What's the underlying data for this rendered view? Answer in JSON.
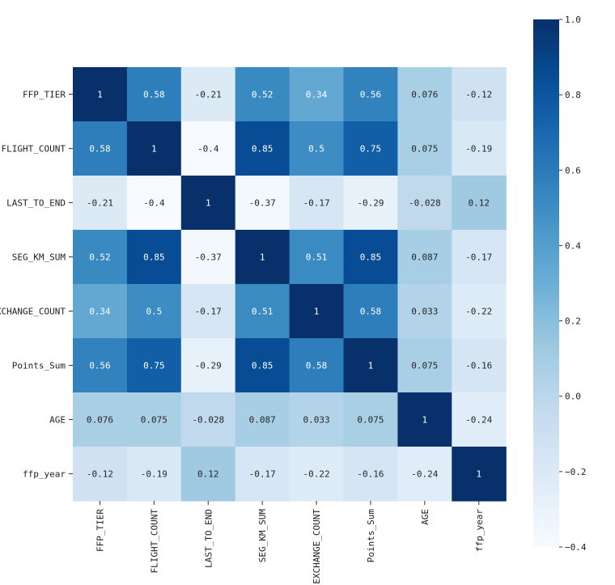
{
  "chart_data": {
    "type": "heatmap",
    "title": "",
    "xlabel": "",
    "ylabel": "",
    "labels": [
      "FFP_TIER",
      "FLIGHT_COUNT",
      "LAST_TO_END",
      "SEG_KM_SUM",
      "EXCHANGE_COUNT",
      "Points_Sum",
      "AGE",
      "ffp_year"
    ],
    "matrix": [
      [
        1,
        0.58,
        -0.21,
        0.52,
        0.34,
        0.56,
        0.076,
        -0.12
      ],
      [
        0.58,
        1,
        -0.4,
        0.85,
        0.5,
        0.75,
        0.075,
        -0.19
      ],
      [
        -0.21,
        -0.4,
        1,
        -0.37,
        -0.17,
        -0.29,
        -0.028,
        0.12
      ],
      [
        0.52,
        0.85,
        -0.37,
        1,
        0.51,
        0.85,
        0.087,
        -0.17
      ],
      [
        0.34,
        0.5,
        -0.17,
        0.51,
        1,
        0.58,
        0.033,
        -0.22
      ],
      [
        0.56,
        0.75,
        -0.29,
        0.85,
        0.58,
        1,
        0.075,
        -0.16
      ],
      [
        0.076,
        0.075,
        -0.028,
        0.087,
        0.033,
        0.075,
        1,
        -0.24
      ],
      [
        -0.12,
        -0.19,
        0.12,
        -0.17,
        -0.22,
        -0.16,
        -0.24,
        1
      ]
    ],
    "cell_labels": [
      [
        "1",
        "0.58",
        "-0.21",
        "0.52",
        "0.34",
        "0.56",
        "0.076",
        "-0.12"
      ],
      [
        "0.58",
        "1",
        "-0.4",
        "0.85",
        "0.5",
        "0.75",
        "0.075",
        "-0.19"
      ],
      [
        "-0.21",
        "-0.4",
        "1",
        "-0.37",
        "-0.17",
        "-0.29",
        "-0.028",
        "0.12"
      ],
      [
        "0.52",
        "0.85",
        "-0.37",
        "1",
        "0.51",
        "0.85",
        "0.087",
        "-0.17"
      ],
      [
        "0.34",
        "0.5",
        "-0.17",
        "0.51",
        "1",
        "0.58",
        "0.033",
        "-0.22"
      ],
      [
        "0.56",
        "0.75",
        "-0.29",
        "0.85",
        "0.58",
        "1",
        "0.075",
        "-0.16"
      ],
      [
        "0.076",
        "0.075",
        "-0.028",
        "0.087",
        "0.033",
        "0.075",
        "1",
        "-0.24"
      ],
      [
        "-0.12",
        "-0.19",
        "0.12",
        "-0.17",
        "-0.22",
        "-0.16",
        "-0.24",
        "1"
      ]
    ],
    "colormap": "Blues",
    "colormap_stops": [
      "#f7fbff",
      "#deebf7",
      "#c6dbef",
      "#9ecae1",
      "#6baed6",
      "#4292c6",
      "#2171b5",
      "#08519c",
      "#08306b"
    ],
    "vmin": -0.4,
    "vmax": 1.0,
    "colorbar_ticks": [
      {
        "value": 1.0,
        "label": "1.0"
      },
      {
        "value": 0.8,
        "label": "0.8"
      },
      {
        "value": 0.6,
        "label": "0.6"
      },
      {
        "value": 0.4,
        "label": "0.4"
      },
      {
        "value": 0.2,
        "label": "0.2"
      },
      {
        "value": 0.0,
        "label": "0.0"
      },
      {
        "value": -0.2,
        "label": "−0.2"
      },
      {
        "value": -0.4,
        "label": "−0.4"
      }
    ],
    "annotation_text_light": "#ffffff",
    "annotation_text_dark": "#262626",
    "grid": false,
    "legend": "colorbar-right"
  }
}
